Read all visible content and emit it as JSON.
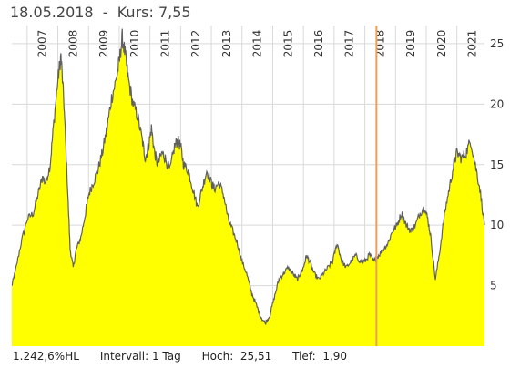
{
  "header": {
    "date": "18.05.2018",
    "separator": "-",
    "kurs_label": "Kurs: 7,55"
  },
  "footer": {
    "hl": "1.242,6%HL",
    "interval": "Intervall: 1 Tag",
    "hoch_label": "Hoch:",
    "hoch_value": "25,51",
    "tief_label": "Tief:",
    "tief_value": "1,90"
  },
  "colors": {
    "area_fill": "#ffff00",
    "line": "#606060",
    "grid": "#d9d9d9",
    "marker": "#e8a05a"
  },
  "chart_data": {
    "type": "area",
    "x_ticks": [
      "2007",
      "2008",
      "2009",
      "2010",
      "2011",
      "2012",
      "2013",
      "2014",
      "2015",
      "2016",
      "2017",
      "2018",
      "2019",
      "2020",
      "2021"
    ],
    "y_ticks": [
      "5",
      "10",
      "15",
      "20",
      "25"
    ],
    "ylim": [
      0,
      26.5
    ],
    "xlim": [
      2006.5,
      2021.9
    ],
    "marker_x": 2018.38,
    "high": 25.51,
    "low": 1.9,
    "x": [
      2006.5,
      2006.6,
      2006.8,
      2007.0,
      2007.2,
      2007.35,
      2007.5,
      2007.6,
      2007.75,
      2007.85,
      2008.0,
      2008.1,
      2008.2,
      2008.3,
      2008.4,
      2008.5,
      2008.6,
      2008.75,
      2008.9,
      2009.0,
      2009.15,
      2009.3,
      2009.45,
      2009.6,
      2009.75,
      2009.9,
      2010.0,
      2010.1,
      2010.2,
      2010.3,
      2010.45,
      2010.6,
      2010.75,
      2010.85,
      2010.95,
      2011.05,
      2011.15,
      2011.25,
      2011.4,
      2011.5,
      2011.65,
      2011.8,
      2011.9,
      2012.0,
      2012.1,
      2012.25,
      2012.4,
      2012.55,
      2012.7,
      2012.85,
      2013.0,
      2013.1,
      2013.25,
      2013.4,
      2013.55,
      2013.7,
      2013.85,
      2014.0,
      2014.15,
      2014.3,
      2014.45,
      2014.6,
      2014.75,
      2014.9,
      2015.05,
      2015.2,
      2015.35,
      2015.5,
      2015.65,
      2015.8,
      2015.9,
      2016.0,
      2016.1,
      2016.2,
      2016.35,
      2016.5,
      2016.65,
      2016.8,
      2016.95,
      2017.1,
      2017.25,
      2017.4,
      2017.55,
      2017.7,
      2017.85,
      2018.0,
      2018.15,
      2018.3,
      2018.45,
      2018.6,
      2018.75,
      2018.9,
      2019.05,
      2019.2,
      2019.35,
      2019.5,
      2019.65,
      2019.8,
      2019.95,
      2020.05,
      2020.15,
      2020.3,
      2020.45,
      2020.6,
      2020.75,
      2020.9,
      2021.0,
      2021.15,
      2021.3,
      2021.45,
      2021.6,
      2021.75,
      2021.9
    ],
    "values": [
      5.0,
      6.0,
      8.5,
      10.5,
      11.0,
      12.5,
      14.0,
      13.5,
      15.0,
      18.0,
      22.0,
      24.0,
      20.0,
      14.0,
      8.0,
      6.5,
      8.0,
      9.0,
      11.0,
      12.5,
      13.5,
      14.5,
      16.0,
      18.0,
      20.5,
      22.0,
      23.5,
      25.5,
      24.0,
      22.0,
      20.0,
      19.0,
      17.0,
      15.5,
      16.5,
      18.0,
      16.0,
      15.0,
      16.0,
      15.5,
      14.5,
      16.5,
      17.0,
      16.5,
      15.0,
      14.5,
      13.0,
      11.5,
      13.0,
      14.5,
      13.5,
      13.0,
      13.5,
      12.5,
      10.5,
      9.5,
      8.5,
      7.0,
      6.0,
      4.5,
      3.5,
      2.5,
      1.9,
      2.5,
      4.0,
      5.5,
      6.0,
      6.5,
      6.0,
      5.5,
      6.0,
      6.5,
      7.5,
      7.0,
      6.0,
      5.5,
      6.0,
      6.5,
      7.0,
      8.5,
      7.0,
      6.5,
      7.0,
      7.5,
      7.0,
      7.0,
      7.55,
      7.0,
      7.5,
      8.0,
      8.5,
      9.5,
      10.0,
      11.0,
      10.0,
      9.5,
      10.0,
      11.0,
      11.5,
      10.5,
      9.0,
      5.5,
      8.0,
      11.0,
      13.0,
      15.0,
      16.0,
      15.5,
      16.0,
      17.0,
      15.0,
      13.0,
      10.0
    ]
  }
}
